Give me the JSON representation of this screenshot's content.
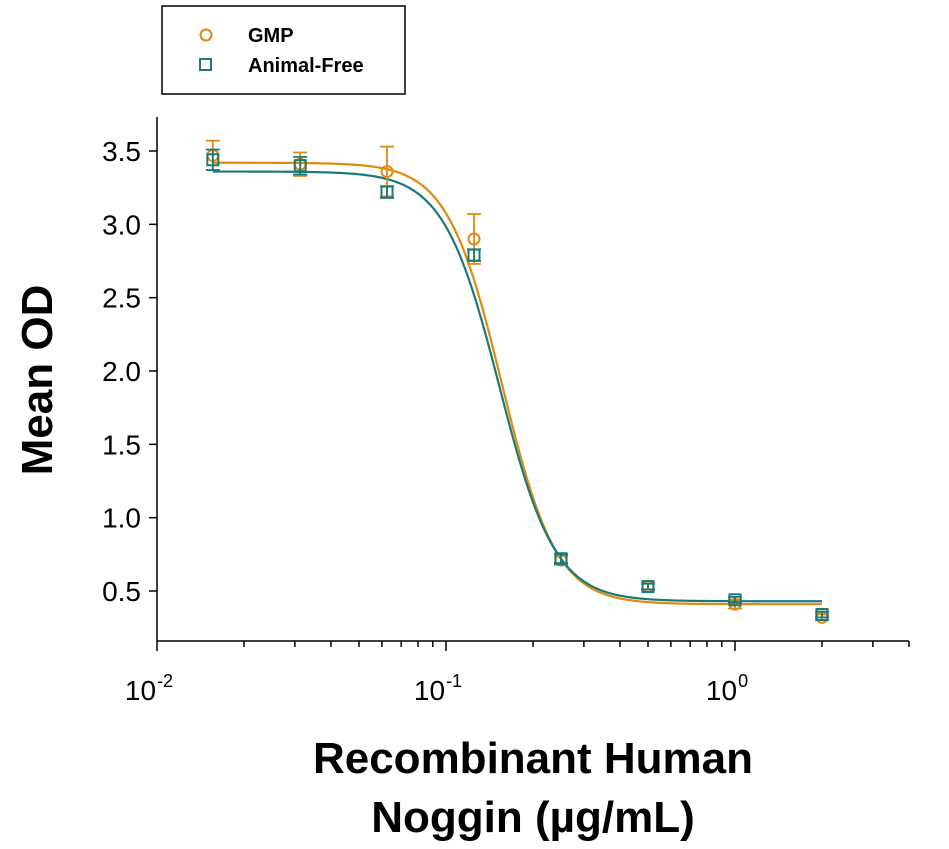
{
  "chart_data": {
    "type": "scatter",
    "xlabel": [
      "Recombinant Human",
      "Noggin (µg/mL)"
    ],
    "ylabel": "Mean OD",
    "x_scale": "log",
    "xlim": [
      0.01,
      4
    ],
    "ylim": [
      0.2,
      3.7
    ],
    "x_ticks": [
      {
        "value": 0.01,
        "base": "10",
        "exp": "-2"
      },
      {
        "value": 0.1,
        "base": "10",
        "exp": "-1"
      },
      {
        "value": 1,
        "base": "10",
        "exp": "0"
      }
    ],
    "y_ticks": [
      "0.5",
      "1.0",
      "1.5",
      "2.0",
      "2.5",
      "3.0",
      "3.5"
    ],
    "legend_position": "top-left",
    "series": [
      {
        "name": "GMP",
        "color": "#E08A10",
        "marker": "circle",
        "points": [
          {
            "x": 0.0156,
            "y": 3.47,
            "err": 0.1
          },
          {
            "x": 0.0313,
            "y": 3.41,
            "err": 0.08
          },
          {
            "x": 0.0625,
            "y": 3.36,
            "err": 0.17
          },
          {
            "x": 0.125,
            "y": 2.9,
            "err": 0.17
          },
          {
            "x": 0.25,
            "y": 0.71,
            "err": 0.03
          },
          {
            "x": 0.5,
            "y": 0.53,
            "err": 0.02
          },
          {
            "x": 1.0,
            "y": 0.41,
            "err": 0.03
          },
          {
            "x": 2.0,
            "y": 0.32,
            "err": 0.02
          }
        ],
        "fit": {
          "top": 3.42,
          "bottom": 0.41,
          "ec50": 0.156,
          "hill": 4.6
        }
      },
      {
        "name": "Animal-Free",
        "color": "#1A7A78",
        "marker": "square",
        "points": [
          {
            "x": 0.0156,
            "y": 3.44,
            "err": 0.07
          },
          {
            "x": 0.0313,
            "y": 3.4,
            "err": 0.06
          },
          {
            "x": 0.0625,
            "y": 3.22,
            "err": 0.04
          },
          {
            "x": 0.125,
            "y": 2.79,
            "err": 0.04
          },
          {
            "x": 0.25,
            "y": 0.72,
            "err": 0.03
          },
          {
            "x": 0.5,
            "y": 0.53,
            "err": 0.02
          },
          {
            "x": 1.0,
            "y": 0.44,
            "err": 0.02
          },
          {
            "x": 2.0,
            "y": 0.34,
            "err": 0.02
          }
        ],
        "fit": {
          "top": 3.36,
          "bottom": 0.43,
          "ec50": 0.153,
          "hill": 4.5
        }
      }
    ]
  }
}
